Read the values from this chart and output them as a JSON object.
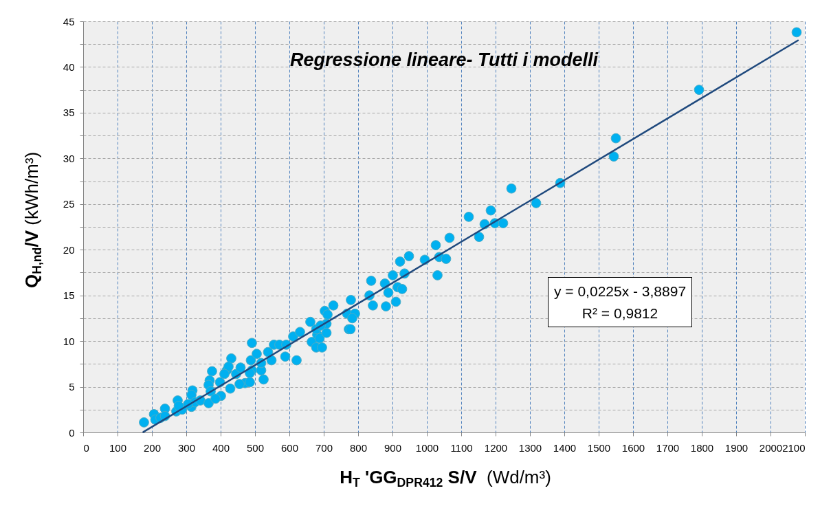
{
  "chart_data": {
    "type": "scatter",
    "title": "Regressione lineare- Tutti i modelli",
    "xlabel": "H$_{T}$ 'GG$_{DPR412}$ S/V  (Wd/m³)",
    "ylabel": "Q$_{H,nd}$/V (kWh/m³)",
    "annotations": [
      "y = 0,0225x - 3,8897",
      "R² = 0,9812"
    ],
    "xlim": [
      0,
      2100
    ],
    "xticks": [
      0,
      100,
      200,
      300,
      400,
      500,
      600,
      700,
      800,
      900,
      1000,
      1100,
      1200,
      1300,
      1400,
      1500,
      1600,
      1700,
      1800,
      1900,
      2000,
      2100
    ],
    "ylim": [
      0,
      45
    ],
    "yticks": [
      0,
      {
        "value": 2.5,
        "label": null
      },
      5,
      {
        "value": 7.5,
        "label": null
      },
      10,
      {
        "value": 12.5,
        "label": null
      },
      15,
      {
        "value": 17.5,
        "label": null
      },
      20,
      {
        "value": 22.5,
        "label": null
      },
      25,
      {
        "value": 27.5,
        "label": null
      },
      30,
      {
        "value": 32.5,
        "label": null
      },
      35,
      {
        "value": 37.5,
        "label": null
      },
      40,
      {
        "value": 42.5,
        "label": null
      },
      45
    ],
    "grid": true,
    "marker": "circle",
    "series": [
      {
        "color": "#00b0f0",
        "x": [
          177,
          206,
          210,
          225,
          238,
          238,
          275,
          271,
          288,
          278,
          318,
          315,
          315,
          325,
          305,
          341,
          365,
          375,
          368,
          365,
          371,
          398,
          401,
          385,
          418,
          431,
          423,
          428,
          411,
          445,
          458,
          471,
          485,
          455,
          491,
          488,
          491,
          505,
          518,
          525,
          518,
          485,
          538,
          548,
          555,
          571,
          588,
          591,
          611,
          621,
          631,
          661,
          665,
          678,
          681,
          688,
          728,
          703,
          711,
          708,
          678,
          708,
          695,
          691,
          779,
          768,
          791,
          783,
          773,
          778,
          838,
          833,
          843,
          878,
          888,
          881,
          910,
          915,
          928,
          901,
          935,
          1031,
          922,
          948,
          994,
          1026,
          1036,
          1056,
          1066,
          1122,
          1152,
          1168,
          1186,
          1198,
          1222,
          1246,
          1318,
          1388,
          1544,
          1550,
          1792,
          2076
        ],
        "values": [
          1.1,
          2.0,
          1.4,
          1.6,
          2.6,
          1.8,
          3.5,
          2.3,
          2.5,
          2.9,
          4.6,
          4.1,
          2.8,
          3.3,
          3.1,
          3.5,
          3.2,
          6.7,
          5.7,
          5.2,
          4.5,
          5.5,
          4.0,
          3.7,
          6.8,
          8.1,
          7.2,
          4.8,
          6.4,
          6.4,
          7.1,
          5.4,
          5.5,
          5.3,
          9.8,
          7.9,
          6.8,
          8.6,
          6.8,
          5.8,
          7.6,
          6.5,
          8.8,
          7.9,
          9.6,
          9.6,
          8.3,
          9.6,
          10.5,
          7.9,
          11.0,
          12.1,
          9.9,
          9.3,
          10.7,
          10.3,
          13.9,
          13.3,
          12.9,
          11.9,
          11.3,
          10.9,
          9.3,
          11.7,
          14.5,
          13.0,
          13.0,
          12.5,
          11.3,
          11.3,
          16.6,
          15.0,
          13.9,
          16.3,
          15.3,
          13.8,
          14.3,
          15.9,
          15.7,
          17.2,
          17.4,
          17.2,
          18.7,
          19.3,
          18.9,
          20.5,
          19.2,
          19.0,
          21.3,
          23.6,
          21.4,
          22.8,
          24.3,
          22.9,
          22.9,
          26.7,
          25.1,
          27.3,
          30.2,
          32.2,
          37.5,
          43.8
        ]
      },
      {
        "type": "line",
        "color": "#1f497d",
        "marker": "none",
        "x": [
          175,
          2080
        ],
        "values": [
          0.05,
          42.91
        ]
      }
    ]
  }
}
